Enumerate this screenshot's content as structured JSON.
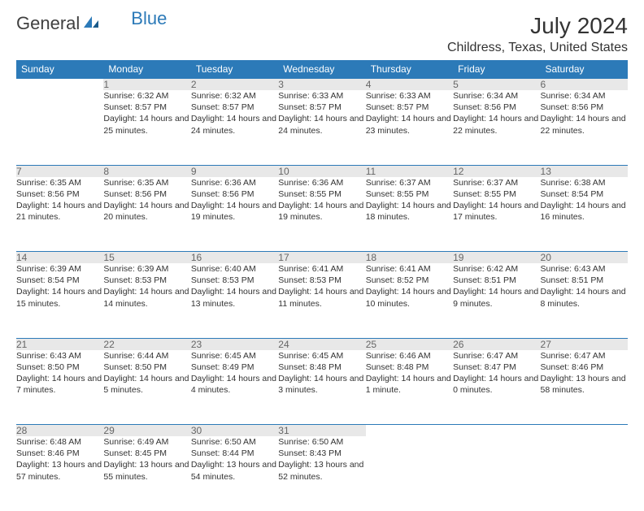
{
  "logo": {
    "text1": "General",
    "text2": "Blue"
  },
  "title": "July 2024",
  "location": "Childress, Texas, United States",
  "colors": {
    "header_bg": "#2c7ab8",
    "header_text": "#ffffff",
    "daynum_bg": "#e8e8e8",
    "daynum_text": "#666666",
    "body_text": "#333333",
    "rule": "#2c7ab8"
  },
  "weekdays": [
    "Sunday",
    "Monday",
    "Tuesday",
    "Wednesday",
    "Thursday",
    "Friday",
    "Saturday"
  ],
  "weeks": [
    [
      null,
      {
        "n": "1",
        "sr": "6:32 AM",
        "ss": "8:57 PM",
        "dl": "14 hours and 25 minutes."
      },
      {
        "n": "2",
        "sr": "6:32 AM",
        "ss": "8:57 PM",
        "dl": "14 hours and 24 minutes."
      },
      {
        "n": "3",
        "sr": "6:33 AM",
        "ss": "8:57 PM",
        "dl": "14 hours and 24 minutes."
      },
      {
        "n": "4",
        "sr": "6:33 AM",
        "ss": "8:57 PM",
        "dl": "14 hours and 23 minutes."
      },
      {
        "n": "5",
        "sr": "6:34 AM",
        "ss": "8:56 PM",
        "dl": "14 hours and 22 minutes."
      },
      {
        "n": "6",
        "sr": "6:34 AM",
        "ss": "8:56 PM",
        "dl": "14 hours and 22 minutes."
      }
    ],
    [
      {
        "n": "7",
        "sr": "6:35 AM",
        "ss": "8:56 PM",
        "dl": "14 hours and 21 minutes."
      },
      {
        "n": "8",
        "sr": "6:35 AM",
        "ss": "8:56 PM",
        "dl": "14 hours and 20 minutes."
      },
      {
        "n": "9",
        "sr": "6:36 AM",
        "ss": "8:56 PM",
        "dl": "14 hours and 19 minutes."
      },
      {
        "n": "10",
        "sr": "6:36 AM",
        "ss": "8:55 PM",
        "dl": "14 hours and 19 minutes."
      },
      {
        "n": "11",
        "sr": "6:37 AM",
        "ss": "8:55 PM",
        "dl": "14 hours and 18 minutes."
      },
      {
        "n": "12",
        "sr": "6:37 AM",
        "ss": "8:55 PM",
        "dl": "14 hours and 17 minutes."
      },
      {
        "n": "13",
        "sr": "6:38 AM",
        "ss": "8:54 PM",
        "dl": "14 hours and 16 minutes."
      }
    ],
    [
      {
        "n": "14",
        "sr": "6:39 AM",
        "ss": "8:54 PM",
        "dl": "14 hours and 15 minutes."
      },
      {
        "n": "15",
        "sr": "6:39 AM",
        "ss": "8:53 PM",
        "dl": "14 hours and 14 minutes."
      },
      {
        "n": "16",
        "sr": "6:40 AM",
        "ss": "8:53 PM",
        "dl": "14 hours and 13 minutes."
      },
      {
        "n": "17",
        "sr": "6:41 AM",
        "ss": "8:53 PM",
        "dl": "14 hours and 11 minutes."
      },
      {
        "n": "18",
        "sr": "6:41 AM",
        "ss": "8:52 PM",
        "dl": "14 hours and 10 minutes."
      },
      {
        "n": "19",
        "sr": "6:42 AM",
        "ss": "8:51 PM",
        "dl": "14 hours and 9 minutes."
      },
      {
        "n": "20",
        "sr": "6:43 AM",
        "ss": "8:51 PM",
        "dl": "14 hours and 8 minutes."
      }
    ],
    [
      {
        "n": "21",
        "sr": "6:43 AM",
        "ss": "8:50 PM",
        "dl": "14 hours and 7 minutes."
      },
      {
        "n": "22",
        "sr": "6:44 AM",
        "ss": "8:50 PM",
        "dl": "14 hours and 5 minutes."
      },
      {
        "n": "23",
        "sr": "6:45 AM",
        "ss": "8:49 PM",
        "dl": "14 hours and 4 minutes."
      },
      {
        "n": "24",
        "sr": "6:45 AM",
        "ss": "8:48 PM",
        "dl": "14 hours and 3 minutes."
      },
      {
        "n": "25",
        "sr": "6:46 AM",
        "ss": "8:48 PM",
        "dl": "14 hours and 1 minute."
      },
      {
        "n": "26",
        "sr": "6:47 AM",
        "ss": "8:47 PM",
        "dl": "14 hours and 0 minutes."
      },
      {
        "n": "27",
        "sr": "6:47 AM",
        "ss": "8:46 PM",
        "dl": "13 hours and 58 minutes."
      }
    ],
    [
      {
        "n": "28",
        "sr": "6:48 AM",
        "ss": "8:46 PM",
        "dl": "13 hours and 57 minutes."
      },
      {
        "n": "29",
        "sr": "6:49 AM",
        "ss": "8:45 PM",
        "dl": "13 hours and 55 minutes."
      },
      {
        "n": "30",
        "sr": "6:50 AM",
        "ss": "8:44 PM",
        "dl": "13 hours and 54 minutes."
      },
      {
        "n": "31",
        "sr": "6:50 AM",
        "ss": "8:43 PM",
        "dl": "13 hours and 52 minutes."
      },
      null,
      null,
      null
    ]
  ],
  "labels": {
    "sunrise": "Sunrise: ",
    "sunset": "Sunset: ",
    "daylight": "Daylight: "
  }
}
